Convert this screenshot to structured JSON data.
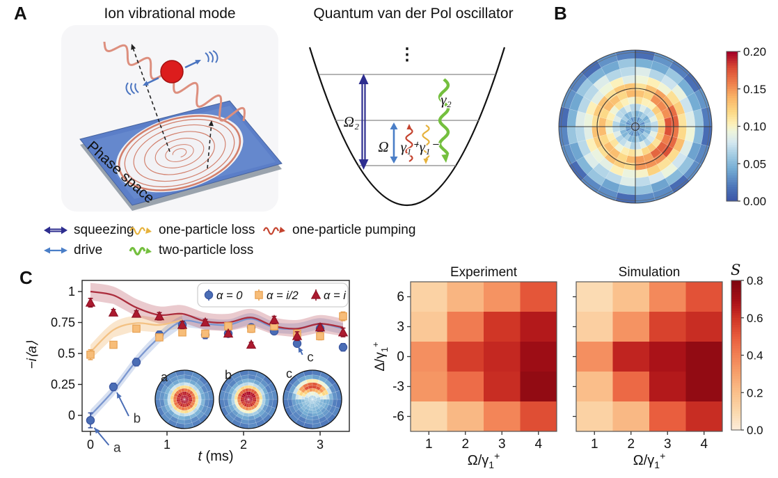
{
  "figure": {
    "panel_a_label": "A",
    "panel_b_label": "B",
    "panel_c_label": "C",
    "ion_title": "Ion vibrational mode",
    "qvdp_title": "Quantum van der Pol oscillator",
    "phase_space_label": "Phase space",
    "experiment_title": "Experiment",
    "simulation_title": "Simulation",
    "s_colorbar_label": "S",
    "well_labels": {
      "omega2": "Ω₂",
      "omega": "Ω",
      "gamma1_plus": "γ₁⁺",
      "gamma1_minus": "γ₁⁻",
      "gamma2": "γ₂",
      "dots": "⋮"
    }
  },
  "legend": {
    "squeezing": "squeezing",
    "drive": "drive",
    "one_particle_loss": "one-particle loss",
    "two_particle_loss": "two-particle loss",
    "one_particle_pumping": "one-particle pumping"
  },
  "colors": {
    "squeezing": "#2d2d8f",
    "drive": "#4a7ec7",
    "one_particle_loss": "#e6b23c",
    "two_particle_loss": "#74bf3e",
    "one_particle_pumping": "#c4432e",
    "panel_bg": "#f6f6f8",
    "plate": "#5b7ec8",
    "plate_edge": "#9aa3ad",
    "wave": "#dd8f7e",
    "ion": "#dc1d1d",
    "ion_edge": "#a31111",
    "vibration_arrow": "#4a74c0",
    "dashed": "#222222",
    "spiral": "#d2806d",
    "well_line": "#111111",
    "level_line": "#888888",
    "annotation_arrow": "#4a6db5"
  },
  "colormaps": {
    "rdylbu_r": [
      {
        "t": 0.0,
        "c": "#3a53a4"
      },
      {
        "t": 0.1,
        "c": "#4c74b9"
      },
      {
        "t": 0.225,
        "c": "#76aed4"
      },
      {
        "t": 0.325,
        "c": "#a8cfe4"
      },
      {
        "t": 0.4,
        "c": "#d5e8f0"
      },
      {
        "t": 0.475,
        "c": "#eef5db"
      },
      {
        "t": 0.525,
        "c": "#fdf0b7"
      },
      {
        "t": 0.6,
        "c": "#fcd987"
      },
      {
        "t": 0.7,
        "c": "#f9b467"
      },
      {
        "t": 0.8,
        "c": "#ee7d4b"
      },
      {
        "t": 0.9,
        "c": "#d94a34"
      },
      {
        "t": 1.0,
        "c": "#a50026"
      }
    ],
    "reds": [
      {
        "t": 0.0,
        "c": "#fdeedd"
      },
      {
        "t": 0.125,
        "c": "#fbd9ae"
      },
      {
        "t": 0.25,
        "c": "#fac18d"
      },
      {
        "t": 0.375,
        "c": "#f7a36e"
      },
      {
        "t": 0.5,
        "c": "#f28256"
      },
      {
        "t": 0.625,
        "c": "#e95e3e"
      },
      {
        "t": 0.75,
        "c": "#d03626"
      },
      {
        "t": 0.8125,
        "c": "#bc1f1e"
      },
      {
        "t": 0.875,
        "c": "#a50f16"
      },
      {
        "t": 1.0,
        "c": "#7f060f"
      }
    ]
  },
  "chart_data": [
    {
      "id": "wigner-polar",
      "type": "heatmap",
      "subtype": "polar",
      "colormap": "rdylbu_r",
      "vmin": 0.0,
      "vmax": 0.2,
      "colorbar_ticks": [
        "0.20",
        "0.15",
        "0.10",
        "0.05",
        "0.00"
      ],
      "n_sectors": 24,
      "sector_noise": 0.01,
      "ring_edges": [
        0,
        0.06,
        0.13,
        0.21,
        0.3,
        0.39,
        0.48,
        0.57,
        0.67,
        0.78,
        0.89,
        1.0
      ],
      "ring_values": [
        0.03,
        0.04,
        0.055,
        0.075,
        0.105,
        0.13,
        0.125,
        0.095,
        0.075,
        0.05,
        0.025
      ],
      "hotspot": {
        "angle_deg": 15,
        "width_deg": 85,
        "ring_boost": [
          0,
          0,
          0,
          0.005,
          0.02,
          0.04,
          0.045,
          0.03,
          0.012,
          0,
          0
        ]
      },
      "overlay": {
        "inner_circle_r": 0.5,
        "crosshair": true,
        "center_circle_r": 0.05
      }
    },
    {
      "id": "trajectory",
      "type": "line+scatter",
      "xlabel_var": "t",
      "xlabel_unit": " (ms)",
      "ylabel": "−i⟨a⟩",
      "xticks": [
        0,
        1,
        2,
        3
      ],
      "xtick_labels": [
        "0",
        "1",
        "2",
        "3"
      ],
      "yticks": [
        0,
        0.25,
        0.5,
        0.75,
        1
      ],
      "ytick_labels": [
        "0",
        "0.25",
        "0.5",
        "0.75",
        "1"
      ],
      "x": [
        0,
        0.3,
        0.6,
        0.9,
        1.2,
        1.5,
        1.8,
        2.1,
        2.4,
        2.7,
        3.0,
        3.3
      ],
      "series": [
        {
          "name": "α = 0",
          "marker": "circle",
          "color": "#4a6db5",
          "edge": "#3a55a0",
          "line_color": "#7b97d0",
          "band_color": "rgba(123,151,208,0.30)",
          "y": [
            -0.04,
            0.23,
            0.43,
            0.65,
            0.73,
            0.65,
            0.66,
            0.71,
            0.68,
            0.58,
            0.7,
            0.55
          ],
          "yerr": [
            0.06,
            0.03,
            0.03,
            0.03,
            0.03,
            0.03,
            0.025,
            0.025,
            0.025,
            0.025,
            0.03,
            0.03
          ],
          "line": [
            0.0,
            0.2,
            0.44,
            0.63,
            0.76,
            0.74,
            0.73,
            0.78,
            0.71,
            0.7,
            0.74,
            0.7
          ],
          "band": 0.045
        },
        {
          "name": "α = i/2",
          "marker": "square",
          "color": "#f7bd79",
          "edge": "#e8a254",
          "line_color": "#f3c183",
          "band_color": "rgba(243,193,131,0.40)",
          "y": [
            0.49,
            0.57,
            0.7,
            0.63,
            0.67,
            0.66,
            0.72,
            0.7,
            0.72,
            0.66,
            0.64,
            0.8
          ],
          "yerr": [
            0.04,
            0.025,
            0.025,
            0.025,
            0.025,
            0.025,
            0.03,
            0.03,
            0.03,
            0.03,
            0.03,
            0.035
          ],
          "line_x": [
            0,
            0.3,
            0.6,
            0.9,
            1.2
          ],
          "line": [
            0.51,
            0.69,
            0.745,
            0.73,
            0.77
          ],
          "band": 0.06
        },
        {
          "name": "α = i",
          "marker": "triangle",
          "color": "#ac1a2f",
          "edge": "#8f1226",
          "line_color": "#ab2d3d",
          "band_color": "rgba(171,45,61,0.25)",
          "y": [
            0.91,
            0.83,
            0.82,
            0.8,
            0.73,
            0.75,
            0.66,
            0.57,
            0.77,
            0.64,
            0.71,
            0.67
          ],
          "yerr": [
            0.035,
            0.025,
            0.025,
            0.03,
            0.03,
            0.025,
            0.02,
            0.02,
            0.03,
            0.035,
            0.03,
            0.035
          ],
          "line": [
            1.0,
            0.97,
            0.87,
            0.81,
            0.82,
            0.76,
            0.75,
            0.79,
            0.72,
            0.7,
            0.74,
            0.71
          ],
          "band": 0.07
        }
      ],
      "annotations": [
        {
          "label": "a",
          "label_at": [
            0.3,
            -0.295
          ],
          "arrow_from": [
            0.24,
            -0.24
          ],
          "arrow_to": [
            0.05,
            -0.1
          ]
        },
        {
          "label": "b",
          "label_at": [
            0.56,
            -0.06
          ],
          "arrow_from": [
            0.5,
            -0.005
          ],
          "arrow_to": [
            0.345,
            0.185
          ]
        },
        {
          "label": "c",
          "label_at": [
            2.83,
            0.435
          ],
          "arrow_from": [
            2.77,
            0.49
          ],
          "arrow_to": [
            2.715,
            0.555
          ]
        }
      ],
      "insets": {
        "colormap": "rdylbu_r",
        "vmin": 0.0,
        "vmax": 0.2,
        "n_sectors": 20,
        "sector_noise": 0.004,
        "ring_edges": [
          0,
          0.14,
          0.27,
          0.38,
          0.48,
          0.58,
          0.7,
          0.84,
          1.0
        ],
        "items": [
          {
            "label": "a",
            "ring_values": [
              0.196,
              0.186,
              0.16,
              0.115,
              0.075,
              0.047,
              0.034,
              0.028
            ],
            "hotspot": {
              "angle_deg": -90,
              "width_deg": 120,
              "ring_boost": [
                0,
                0.004,
                0.006,
                0.004,
                0,
                0,
                0,
                0
              ]
            }
          },
          {
            "label": "b",
            "ring_values": [
              0.192,
              0.184,
              0.152,
              0.1,
              0.062,
              0.042,
              0.031,
              0.027
            ],
            "hotspot": {
              "angle_deg": -90,
              "width_deg": 110,
              "ring_boost": [
                0.006,
                0.012,
                0.022,
                0.022,
                0.012,
                0.004,
                0,
                0
              ]
            }
          },
          {
            "label": "c",
            "ring_values": [
              0.064,
              0.06,
              0.054,
              0.048,
              0.042,
              0.036,
              0.028,
              0.024
            ],
            "hotspot": {
              "angle_deg": -90,
              "width_deg": 95,
              "ring_boost": [
                0.004,
                0.035,
                0.095,
                0.135,
                0.13,
                0.07,
                0.015,
                0
              ]
            }
          }
        ]
      }
    },
    {
      "id": "experiment-heatmap",
      "type": "heatmap",
      "colormap": "reds",
      "vmin": 0.0,
      "vmax": 0.8,
      "xlabel": "Ω/γ₁⁺",
      "ylabel": "Δ/γ₁⁺",
      "cols": [
        "1",
        "2",
        "3",
        "4"
      ],
      "rows": [
        "6",
        "3",
        "0",
        "-3",
        "-6"
      ],
      "show_ylabels": true,
      "values": [
        [
          0.13,
          0.24,
          0.35,
          0.52
        ],
        [
          0.17,
          0.42,
          0.6,
          0.67
        ],
        [
          0.36,
          0.58,
          0.63,
          0.72
        ],
        [
          0.34,
          0.46,
          0.62,
          0.75
        ],
        [
          0.11,
          0.23,
          0.39,
          0.54
        ]
      ]
    },
    {
      "id": "simulation-heatmap",
      "type": "heatmap",
      "colormap": "reds",
      "vmin": 0.0,
      "vmax": 0.8,
      "xlabel": "Ω/γ₁⁺",
      "ylabel": "Δ/γ₁⁺",
      "cols": [
        "1",
        "2",
        "3",
        "4"
      ],
      "rows": [
        "6",
        "3",
        "0",
        "-3",
        "-6"
      ],
      "show_ylabels": false,
      "values": [
        [
          0.09,
          0.2,
          0.38,
          0.53
        ],
        [
          0.14,
          0.35,
          0.57,
          0.62
        ],
        [
          0.36,
          0.64,
          0.69,
          0.75
        ],
        [
          0.21,
          0.47,
          0.67,
          0.75
        ],
        [
          0.13,
          0.23,
          0.5,
          0.62
        ]
      ]
    },
    {
      "id": "s-colorbar",
      "type": "colorbar",
      "colormap": "reds",
      "label": "S",
      "ticks": [
        "0.8",
        "0.6",
        "0.4",
        "0.2",
        "0.0"
      ]
    }
  ]
}
